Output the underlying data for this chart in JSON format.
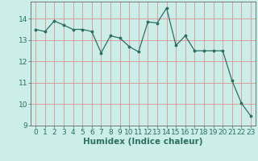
{
  "x": [
    0,
    1,
    2,
    3,
    4,
    5,
    6,
    7,
    8,
    9,
    10,
    11,
    12,
    13,
    14,
    15,
    16,
    17,
    18,
    19,
    20,
    21,
    22,
    23
  ],
  "y": [
    13.5,
    13.4,
    13.9,
    13.7,
    13.5,
    13.5,
    13.4,
    12.4,
    13.2,
    13.1,
    12.7,
    12.45,
    13.85,
    13.8,
    14.5,
    12.75,
    13.2,
    12.5,
    12.5,
    12.5,
    12.5,
    11.1,
    10.05,
    9.45
  ],
  "xlabel": "Humidex (Indice chaleur)",
  "ylim": [
    9,
    14.8
  ],
  "xlim": [
    -0.5,
    23.5
  ],
  "yticks": [
    9,
    10,
    11,
    12,
    13,
    14
  ],
  "xticks": [
    0,
    1,
    2,
    3,
    4,
    5,
    6,
    7,
    8,
    9,
    10,
    11,
    12,
    13,
    14,
    15,
    16,
    17,
    18,
    19,
    20,
    21,
    22,
    23
  ],
  "line_color": "#2d6e62",
  "marker_color": "#2d6e62",
  "bg_color": "#cceee8",
  "grid_color": "#e08080",
  "xlabel_fontsize": 7.5,
  "tick_fontsize": 6.5
}
